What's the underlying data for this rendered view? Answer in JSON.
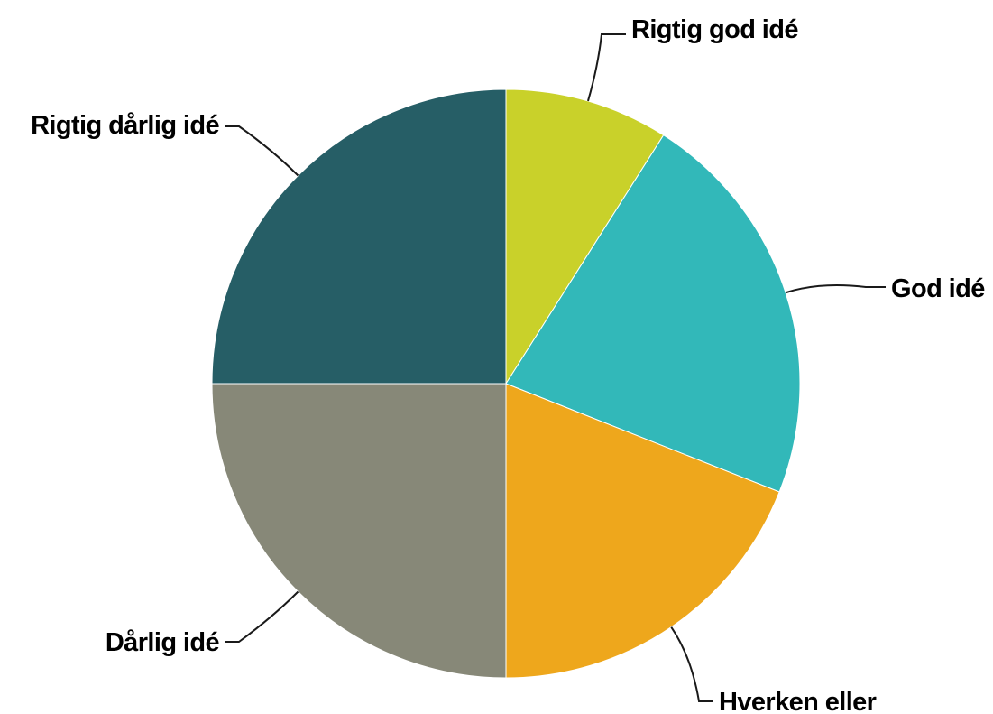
{
  "chart_data": {
    "type": "pie",
    "title": "",
    "start": "top",
    "direction": "clockwise",
    "slices": [
      {
        "label": "Rigtig god idé",
        "value": 9,
        "color": "#c9d12a"
      },
      {
        "label": "God idé",
        "value": 22,
        "color": "#32b8b9"
      },
      {
        "label": "Hverken eller",
        "value": 19,
        "color": "#eea71c"
      },
      {
        "label": "Dårlig idé",
        "value": 25,
        "color": "#878878"
      },
      {
        "label": "Rigtig dårlig idé",
        "value": 25,
        "color": "#265e66"
      }
    ]
  }
}
